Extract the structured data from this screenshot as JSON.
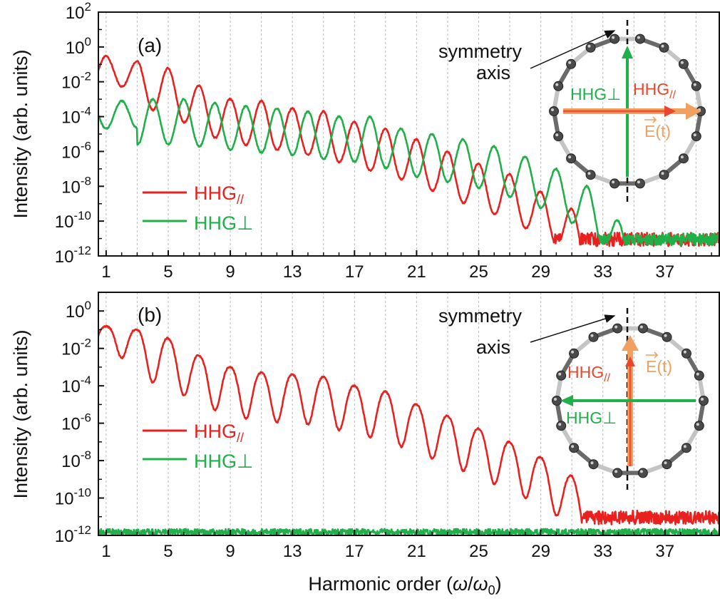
{
  "chart_data": [
    {
      "type": "line",
      "panel": "(a)",
      "xlabel": "Harmonic order (ω/ω0)",
      "ylabel": "Intensity (arb. units)",
      "xlim": [
        0.5,
        40.5
      ],
      "ylim": [
        1e-12,
        100
      ],
      "yscale": "log",
      "xticks": [
        1,
        5,
        9,
        13,
        17,
        21,
        25,
        29,
        33,
        37
      ],
      "yticks": [
        "10^2",
        "10^0",
        "10^-2",
        "10^-4",
        "10^-6",
        "10^-8",
        "10^-10",
        "10^-12"
      ],
      "legend_position": "bottom-left",
      "series": [
        {
          "name": "HHG//",
          "color": "#e8211f",
          "x": [
            1,
            3,
            5,
            7,
            9,
            11,
            13,
            15,
            17,
            19,
            21,
            23,
            25,
            27,
            29,
            31,
            33,
            35,
            37,
            39
          ],
          "values": [
            0.3,
            0.15,
            0.06,
            0.006,
            0.001,
            0.0008,
            0.0003,
            0.0002,
            5e-05,
            2e-05,
            5e-06,
            1e-06,
            2e-07,
            5e-08,
            5e-09,
            5e-10,
            1e-11,
            1e-11,
            1e-11,
            1e-11
          ]
        },
        {
          "name": "HHG⊥",
          "color": "#1fb04a",
          "x": [
            2,
            4,
            6,
            8,
            10,
            12,
            14,
            16,
            18,
            20,
            22,
            24,
            26,
            28,
            30,
            32,
            34,
            36,
            38,
            40
          ],
          "values": [
            0.0008,
            0.001,
            0.001,
            0.0006,
            0.0004,
            0.0003,
            0.0002,
            0.0001,
            0.0001,
            2e-05,
            1e-05,
            5e-06,
            2e-06,
            5e-07,
            1e-07,
            1e-08,
            1e-10,
            1e-12,
            1e-12,
            1e-12
          ]
        }
      ]
    },
    {
      "type": "line",
      "panel": "(b)",
      "xlabel": "Harmonic order (ω/ω0)",
      "ylabel": "Intensity (arb. units)",
      "xlim": [
        0.5,
        40.5
      ],
      "ylim": [
        1e-12,
        10
      ],
      "yscale": "log",
      "xticks": [
        1,
        5,
        9,
        13,
        17,
        21,
        25,
        29,
        33,
        37
      ],
      "yticks": [
        "10^0",
        "10^-2",
        "10^-4",
        "10^-6",
        "10^-8",
        "10^-10",
        "10^-12"
      ],
      "legend_position": "bottom-left",
      "series": [
        {
          "name": "HHG//",
          "color": "#e8211f",
          "x": [
            1,
            3,
            5,
            7,
            9,
            11,
            13,
            15,
            17,
            19,
            21,
            23,
            25,
            27,
            29,
            31,
            33,
            35,
            37,
            39
          ],
          "values": [
            0.3,
            0.2,
            0.07,
            0.008,
            0.002,
            0.001,
            0.0008,
            0.0006,
            0.0002,
            0.0001,
            2e-05,
            5e-06,
            1e-06,
            2e-07,
            3e-08,
            3e-09,
            1e-11,
            1e-11,
            1e-11,
            1e-11
          ]
        },
        {
          "name": "HHG⊥",
          "color": "#1fb04a",
          "x": [
            1,
            40
          ],
          "values": [
            1e-12,
            1e-12
          ]
        }
      ]
    }
  ],
  "panels": [
    {
      "tag": "(a)",
      "legend": {
        "par": "HHG",
        "par_sub": "//",
        "perp": "HHG⊥"
      },
      "annotation": {
        "line1": "symmetry",
        "line2": "axis"
      },
      "inset": {
        "hhg_perp": "HHG⊥",
        "hhg_par": "HHG",
        "hhg_par_sub": "//",
        "field": "E(t)"
      },
      "ytick_labels": [
        {
          "base": "10",
          "exp": "2"
        },
        {
          "base": "10",
          "exp": "0"
        },
        {
          "base": "10",
          "exp": "-2"
        },
        {
          "base": "10",
          "exp": "-4"
        },
        {
          "base": "10",
          "exp": "-6"
        },
        {
          "base": "10",
          "exp": "-8"
        },
        {
          "base": "10",
          "exp": "-10"
        },
        {
          "base": "10",
          "exp": "-12"
        }
      ]
    },
    {
      "tag": "(b)",
      "legend": {
        "par": "HHG",
        "par_sub": "//",
        "perp": "HHG⊥"
      },
      "annotation": {
        "line1": "symmetry",
        "line2": "axis"
      },
      "inset": {
        "hhg_perp": "HHG⊥",
        "hhg_par": "HHG",
        "hhg_par_sub": "//",
        "field": "E(t)"
      },
      "ytick_labels": [
        {
          "base": "10",
          "exp": "0"
        },
        {
          "base": "10",
          "exp": "-2"
        },
        {
          "base": "10",
          "exp": "-4"
        },
        {
          "base": "10",
          "exp": "-6"
        },
        {
          "base": "10",
          "exp": "-8"
        },
        {
          "base": "10",
          "exp": "-10"
        },
        {
          "base": "10",
          "exp": "-12"
        }
      ]
    }
  ],
  "xtick_labels": [
    "1",
    "5",
    "9",
    "13",
    "17",
    "21",
    "25",
    "29",
    "33",
    "37"
  ],
  "axis_labels": {
    "y": "Intensity (arb. units)",
    "x_main": "Harmonic order (",
    "x_omega": "ω",
    "x_slash": "/",
    "x_omega0": "ω",
    "x_sub": "0",
    "x_close": ")"
  },
  "colors": {
    "par": "#e8211f",
    "perp": "#1fb04a",
    "field": "#f0a060",
    "ring_dark": "#6a6a6a",
    "ring_light": "#c4c4c4"
  }
}
